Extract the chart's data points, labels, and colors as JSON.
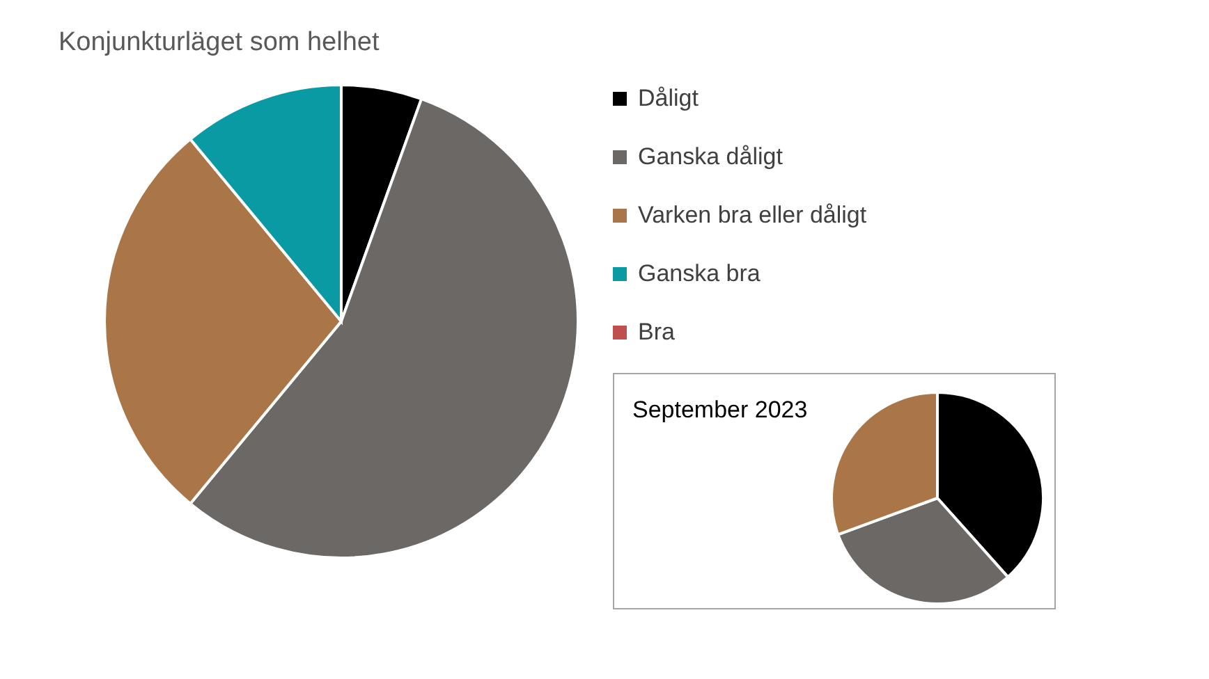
{
  "chart_data": [
    {
      "type": "pie",
      "title": "Konjunkturläget som helhet",
      "categories": [
        "Dåligt",
        "Ganska dåligt",
        "Varken bra eller dåligt",
        "Ganska bra",
        "Bra"
      ],
      "values": [
        5.5,
        55.5,
        28,
        11,
        0
      ],
      "colors": [
        "#000000",
        "#6b6865",
        "#ab7647",
        "#0a9aa4",
        "#c0504d"
      ],
      "legend": "right"
    },
    {
      "type": "pie",
      "title": "September 2023",
      "categories": [
        null,
        null,
        null
      ],
      "values": [
        38.4,
        31,
        30.6
      ],
      "colors": [
        "#000000",
        "#6b6865",
        "#ab7647"
      ]
    }
  ]
}
